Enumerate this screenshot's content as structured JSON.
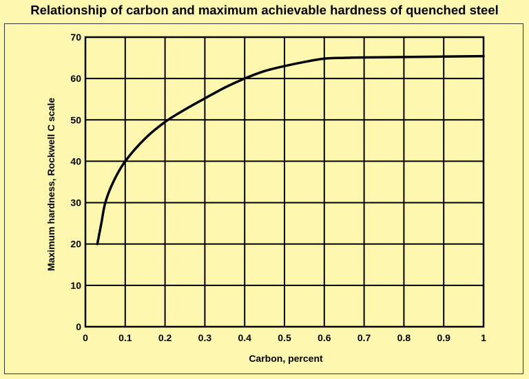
{
  "chart_data": {
    "type": "line",
    "title": "Relationship of carbon and maximum achievable hardness of quenched steel",
    "xlabel": "Carbon, percent",
    "ylabel": "Maximum hardness, Rockwell C scale",
    "xlim": [
      0,
      1
    ],
    "ylim": [
      0,
      70
    ],
    "xticks": [
      "0",
      "0.1",
      "0.2",
      "0.3",
      "0.4",
      "0.5",
      "0.6",
      "0.7",
      "0.8",
      "0.9",
      "1"
    ],
    "yticks": [
      "0",
      "10",
      "20",
      "30",
      "40",
      "50",
      "60",
      "70"
    ],
    "grid": true,
    "legend": "none",
    "series": [
      {
        "x": [
          0.03,
          0.04,
          0.05,
          0.07,
          0.1,
          0.15,
          0.2,
          0.25,
          0.3,
          0.35,
          0.4,
          0.45,
          0.5,
          0.55,
          0.6,
          0.65,
          0.7,
          0.8,
          0.9,
          1.0
        ],
        "y": [
          20,
          25,
          30,
          35,
          40,
          45.5,
          49.5,
          52.5,
          55.2,
          57.8,
          60,
          61.8,
          63,
          64,
          64.8,
          65,
          65.1,
          65.2,
          65.3,
          65.4
        ]
      }
    ],
    "colors": {
      "background": "#fdf7b0",
      "line": "#000000",
      "grid": "#000000"
    }
  }
}
